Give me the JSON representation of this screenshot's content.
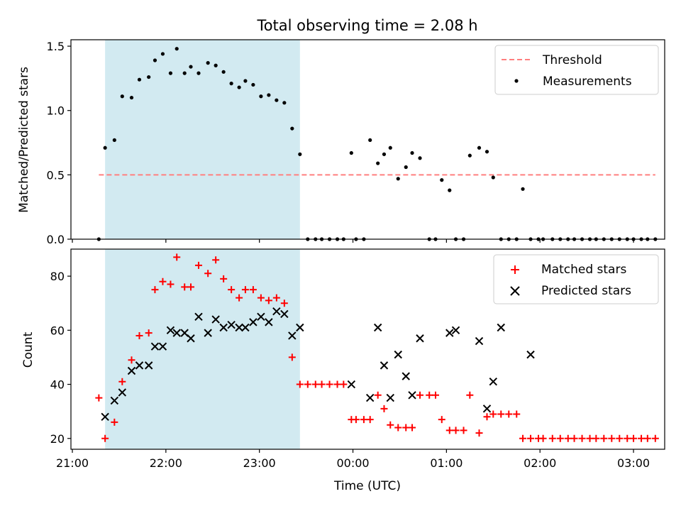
{
  "figure": {
    "title": "Total observing time = 2.08 h",
    "xlabel": "Time (UTC)"
  },
  "chart_data": [
    {
      "type": "scatter",
      "panel": "top",
      "ylabel": "Matched/Predicted stars",
      "xlim": [
        "21:00",
        "03:20"
      ],
      "ylim": [
        0,
        1.55
      ],
      "xticks": [
        "21:00",
        "22:00",
        "23:00",
        "00:00",
        "01:00",
        "02:00",
        "03:00"
      ],
      "yticks": [
        "0.0",
        "0.5",
        "1.0",
        "1.5"
      ],
      "shaded_interval": [
        "21:21",
        "23:26"
      ],
      "legend_position": "upper right",
      "threshold": {
        "name": "Threshold",
        "value": 0.5,
        "x_range": [
          "21:17",
          "03:14"
        ],
        "color": "#ff7f7f",
        "style": "dashed"
      },
      "series": [
        {
          "name": "Measurements",
          "color": "#000000",
          "marker": "dot",
          "x": [
            "21:17",
            "21:21",
            "21:27",
            "21:32",
            "21:38",
            "21:43",
            "21:49",
            "21:53",
            "21:58",
            "22:03",
            "22:07",
            "22:12",
            "22:16",
            "22:21",
            "22:27",
            "22:32",
            "22:37",
            "22:42",
            "22:47",
            "22:51",
            "22:56",
            "23:01",
            "23:06",
            "23:11",
            "23:16",
            "23:21",
            "23:26",
            "23:31",
            "23:36",
            "23:40",
            "23:45",
            "23:50",
            "23:54",
            "23:59",
            "00:02",
            "00:07",
            "00:11",
            "00:16",
            "00:20",
            "00:24",
            "00:29",
            "00:34",
            "00:38",
            "00:43",
            "00:49",
            "00:53",
            "00:57",
            "01:02",
            "01:06",
            "01:11",
            "01:15",
            "01:21",
            "01:26",
            "01:30",
            "01:35",
            "01:40",
            "01:45",
            "01:49",
            "01:54",
            "01:59",
            "02:02",
            "02:08",
            "02:13",
            "02:18",
            "02:22",
            "02:27",
            "02:32",
            "02:36",
            "02:41",
            "02:46",
            "02:51",
            "02:56",
            "03:00",
            "03:05",
            "03:09",
            "03:14"
          ],
          "y": [
            0.0,
            0.71,
            0.77,
            1.11,
            1.1,
            1.24,
            1.26,
            1.39,
            1.44,
            1.29,
            1.48,
            1.29,
            1.34,
            1.29,
            1.37,
            1.35,
            1.3,
            1.21,
            1.18,
            1.23,
            1.2,
            1.11,
            1.12,
            1.08,
            1.06,
            0.86,
            0.66,
            0.0,
            0.0,
            0.0,
            0.0,
            0.0,
            0.0,
            0.67,
            0.0,
            0.0,
            0.77,
            0.59,
            0.66,
            0.71,
            0.47,
            0.56,
            0.67,
            0.63,
            0.0,
            0.0,
            0.46,
            0.38,
            0.0,
            0.0,
            0.65,
            0.71,
            0.68,
            0.48,
            0.0,
            0.0,
            0.0,
            0.39,
            0.0,
            0.0,
            0.0,
            0.0,
            0.0,
            0.0,
            0.0,
            0.0,
            0.0,
            0.0,
            0.0,
            0.0,
            0.0,
            0.0,
            0.0,
            0.0,
            0.0,
            0.0
          ]
        }
      ]
    },
    {
      "type": "scatter",
      "panel": "bottom",
      "ylabel": "Count",
      "xlabel": "Time (UTC)",
      "xlim": [
        "21:00",
        "03:20"
      ],
      "ylim": [
        16,
        90
      ],
      "xticks": [
        "21:00",
        "22:00",
        "23:00",
        "00:00",
        "01:00",
        "02:00",
        "03:00"
      ],
      "yticks": [
        "20",
        "40",
        "60",
        "80"
      ],
      "shaded_interval": [
        "21:21",
        "23:26"
      ],
      "legend_position": "upper right",
      "series": [
        {
          "name": "Matched stars",
          "color": "#ff0000",
          "marker": "plus",
          "x": [
            "21:17",
            "21:21",
            "21:27",
            "21:32",
            "21:38",
            "21:43",
            "21:49",
            "21:53",
            "21:58",
            "22:03",
            "22:07",
            "22:12",
            "22:16",
            "22:21",
            "22:27",
            "22:32",
            "22:37",
            "22:42",
            "22:47",
            "22:51",
            "22:56",
            "23:01",
            "23:06",
            "23:11",
            "23:16",
            "23:21",
            "23:26",
            "23:31",
            "23:36",
            "23:40",
            "23:45",
            "23:50",
            "23:54",
            "23:59",
            "00:02",
            "00:07",
            "00:11",
            "00:16",
            "00:20",
            "00:24",
            "00:29",
            "00:34",
            "00:38",
            "00:43",
            "00:49",
            "00:53",
            "00:57",
            "01:02",
            "01:06",
            "01:11",
            "01:15",
            "01:21",
            "01:26",
            "01:30",
            "01:35",
            "01:40",
            "01:45",
            "01:49",
            "01:54",
            "01:59",
            "02:02",
            "02:08",
            "02:13",
            "02:18",
            "02:22",
            "02:27",
            "02:32",
            "02:36",
            "02:41",
            "02:46",
            "02:51",
            "02:56",
            "03:00",
            "03:05",
            "03:09",
            "03:14"
          ],
          "y": [
            35,
            20,
            26,
            41,
            49,
            58,
            59,
            75,
            78,
            77,
            87,
            76,
            76,
            84,
            81,
            86,
            79,
            75,
            72,
            75,
            75,
            72,
            71,
            72,
            70,
            50,
            40,
            40,
            40,
            40,
            40,
            40,
            40,
            27,
            27,
            27,
            27,
            36,
            31,
            25,
            24,
            24,
            24,
            36,
            36,
            36,
            27,
            23,
            23,
            23,
            36,
            22,
            28,
            29,
            29,
            29,
            29,
            20,
            20,
            20,
            20,
            20,
            20,
            20,
            20,
            20,
            20,
            20,
            20,
            20,
            20,
            20,
            20,
            20,
            20,
            20
          ]
        },
        {
          "name": "Predicted stars",
          "color": "#000000",
          "marker": "x",
          "x": [
            "21:21",
            "21:27",
            "21:32",
            "21:38",
            "21:43",
            "21:49",
            "21:53",
            "21:58",
            "22:03",
            "22:07",
            "22:12",
            "22:16",
            "22:21",
            "22:27",
            "22:32",
            "22:37",
            "22:42",
            "22:47",
            "22:51",
            "22:56",
            "23:01",
            "23:06",
            "23:11",
            "23:16",
            "23:21",
            "23:26",
            "23:59",
            "00:11",
            "00:16",
            "00:20",
            "00:24",
            "00:29",
            "00:34",
            "00:38",
            "00:43",
            "01:02",
            "01:06",
            "01:21",
            "01:26",
            "01:30",
            "01:35",
            "01:54"
          ],
          "y": [
            28,
            34,
            37,
            45,
            47,
            47,
            54,
            54,
            60,
            59,
            59,
            57,
            65,
            59,
            64,
            61,
            62,
            61,
            61,
            63,
            65,
            63,
            67,
            66,
            58,
            61,
            40,
            35,
            61,
            47,
            35,
            51,
            43,
            36,
            57,
            59,
            60,
            56,
            31,
            41,
            61,
            51
          ]
        }
      ]
    }
  ]
}
